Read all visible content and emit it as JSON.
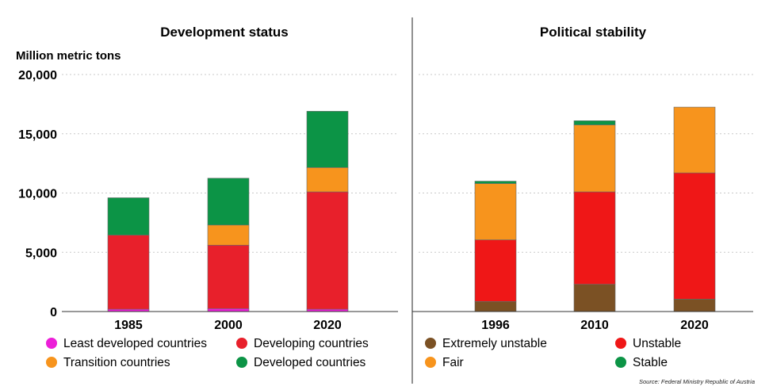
{
  "source": "Source: Federal Ministry Republic of Austria",
  "y_axis_label": "Million metric tons",
  "chart_data": [
    {
      "type": "bar",
      "stacked": true,
      "title": "Development status",
      "ylabel": "Million metric tons",
      "ylim": [
        0,
        20000
      ],
      "yticks": [
        0,
        5000,
        10000,
        15000,
        20000
      ],
      "ytick_labels": [
        "0",
        "5,000",
        "10,000",
        "15,000",
        "20,000"
      ],
      "grid": "horizontal dotted",
      "categories": [
        "1985",
        "2000",
        "2020"
      ],
      "series": [
        {
          "name": "Least developed countries",
          "color": "#ec1fd8",
          "values": [
            200,
            250,
            200
          ]
        },
        {
          "name": "Developing countries",
          "color": "#e8202b",
          "values": [
            6250,
            5350,
            9900
          ]
        },
        {
          "name": "Transition countries",
          "color": "#f7941d",
          "values": [
            0,
            1700,
            2050
          ]
        },
        {
          "name": "Developed countries",
          "color": "#0c9446",
          "values": [
            3150,
            3950,
            4750
          ]
        }
      ],
      "legend_position": "bottom"
    },
    {
      "type": "bar",
      "stacked": true,
      "title": "Political stability",
      "ylim": [
        0,
        20000
      ],
      "grid": "horizontal dotted",
      "categories": [
        "1996",
        "2010",
        "2020"
      ],
      "series": [
        {
          "name": "Extremely unstable",
          "color": "#7b5124",
          "values": [
            850,
            2300,
            1050
          ]
        },
        {
          "name": "Unstable",
          "color": "#ef1717",
          "values": [
            5200,
            7800,
            10650
          ]
        },
        {
          "name": "Fair",
          "color": "#f7941d",
          "values": [
            4750,
            5650,
            5550
          ]
        },
        {
          "name": "Stable",
          "color": "#0c9446",
          "values": [
            200,
            350,
            0
          ]
        }
      ],
      "legend_position": "bottom"
    }
  ]
}
